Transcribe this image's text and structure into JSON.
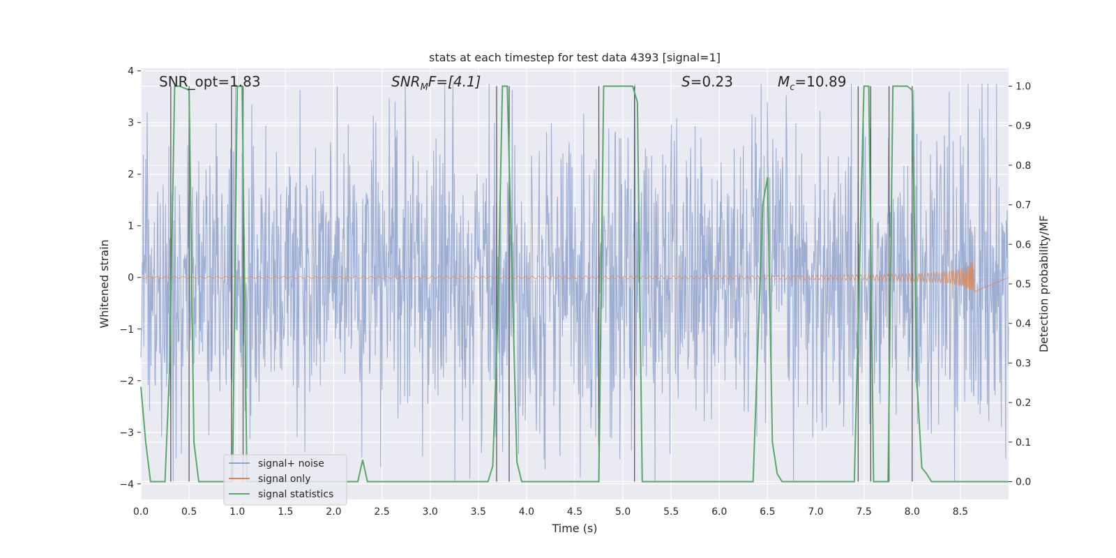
{
  "chart_data": {
    "type": "line",
    "title": "stats at each timestep for test data 4393 [signal=1]",
    "xlabel": "Time (s)",
    "ylabel": "Whitened strain",
    "y2label": "Detection probability/MF",
    "xlim": [
      0,
      9.0
    ],
    "ylim": [
      -4.3,
      4.05
    ],
    "y2lim": [
      -0.045,
      1.045
    ],
    "xticks": [
      0.0,
      0.5,
      1.0,
      1.5,
      2.0,
      2.5,
      3.0,
      3.5,
      4.0,
      4.5,
      5.0,
      5.5,
      6.0,
      6.5,
      7.0,
      7.5,
      8.0,
      8.5
    ],
    "xtick_labels": [
      "0.0",
      "0.5",
      "1.0",
      "1.5",
      "2.0",
      "2.5",
      "3.0",
      "3.5",
      "4.0",
      "4.5",
      "5.0",
      "5.5",
      "6.0",
      "6.5",
      "7.0",
      "7.5",
      "8.0",
      "8.5"
    ],
    "yticks": [
      -4,
      -3,
      -2,
      -1,
      0,
      1,
      2,
      3,
      4
    ],
    "ytick_labels": [
      "−4",
      "−3",
      "−2",
      "−1",
      "0",
      "1",
      "2",
      "3",
      "4"
    ],
    "y2ticks": [
      0.0,
      0.1,
      0.2,
      0.3,
      0.4,
      0.5,
      0.6,
      0.7,
      0.8,
      0.9,
      1.0
    ],
    "y2tick_labels": [
      "0.0",
      "0.1",
      "0.2",
      "0.3",
      "0.4",
      "0.5",
      "0.6",
      "0.7",
      "0.8",
      "0.9",
      "1.0"
    ],
    "annotations": {
      "snr_opt": "SNR_opt=1.83",
      "snr_mf_base": "SNR",
      "snr_mf_sub": "M",
      "snr_mf_rest": "F=[4.1]",
      "s_symbol": "S",
      "s_value": "=0.23",
      "mc_symbol": "M",
      "mc_sub": "c",
      "mc_value": "=10.89"
    },
    "legend": {
      "location": "lower-left",
      "entries": [
        {
          "label": "signal+ noise",
          "color": "#8fa3cc"
        },
        {
          "label": "signal only",
          "color": "#dd8452"
        },
        {
          "label": "signal statistics",
          "color": "#55a868"
        }
      ]
    },
    "series": [
      {
        "name": "signal+ noise",
        "axis": "left",
        "style": "noise",
        "color": "#8fa3cc",
        "duration": 9.0,
        "n_samples": 1800,
        "amplitude_envelope": [
          1.4,
          1.5,
          1.4,
          1.5,
          1.45,
          1.45,
          1.5,
          1.4,
          1.45,
          1.5
        ]
      },
      {
        "name": "signal only",
        "axis": "left",
        "style": "chirp",
        "color": "#dd8452",
        "t_start": 0.0,
        "t_merge": 8.65,
        "max_amplitude": 0.3
      },
      {
        "name": "signal statistics",
        "axis": "right",
        "color": "#55a868",
        "x": [
          0.0,
          0.05,
          0.1,
          0.25,
          0.3,
          0.35,
          0.4,
          0.5,
          0.55,
          0.6,
          0.95,
          1.0,
          1.05,
          1.1,
          1.5,
          2.0,
          2.25,
          2.3,
          2.35,
          2.4,
          2.8,
          3.2,
          3.6,
          3.65,
          3.7,
          3.75,
          3.8,
          3.9,
          3.95,
          4.5,
          4.75,
          4.8,
          4.85,
          5.1,
          5.15,
          5.2,
          6.35,
          6.45,
          6.5,
          6.55,
          6.6,
          6.65,
          7.0,
          7.4,
          7.45,
          7.5,
          7.55,
          7.6,
          7.75,
          7.8,
          7.9,
          7.95,
          8.0,
          8.05,
          8.1,
          8.15,
          8.2,
          9.0
        ],
        "y": [
          0.24,
          0.1,
          0.0,
          0.0,
          0.3,
          1.0,
          1.0,
          0.99,
          0.1,
          0.0,
          0.0,
          1.0,
          1.0,
          0.0,
          0.0,
          0.0,
          0.0,
          0.055,
          0.0,
          0.0,
          0.0,
          0.0,
          0.0,
          0.04,
          0.4,
          1.0,
          1.0,
          0.05,
          0.0,
          0.0,
          0.0,
          1.0,
          1.0,
          1.0,
          0.96,
          0.0,
          0.0,
          0.7,
          0.77,
          0.1,
          0.02,
          0.0,
          0.0,
          0.0,
          0.5,
          1.0,
          1.0,
          0.0,
          0.0,
          1.0,
          1.0,
          1.0,
          0.99,
          0.25,
          0.035,
          0.02,
          0.0,
          0.0
        ]
      }
    ],
    "threshold_crossings": [
      0.31,
      0.5,
      0.94,
      1.06,
      3.69,
      3.82,
      4.75,
      5.12,
      7.44,
      7.57,
      7.76,
      8.0
    ]
  }
}
